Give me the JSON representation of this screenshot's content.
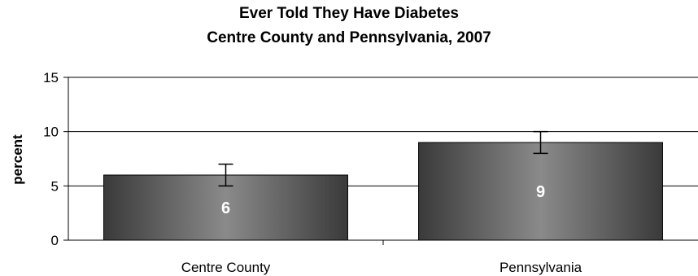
{
  "chart_data": {
    "type": "bar",
    "title": "Ever Told They Have Diabetes",
    "subtitle": "Centre County and Pennsylvania, 2007",
    "xlabel": "",
    "ylabel": "percent",
    "ylim": [
      0,
      15
    ],
    "yticks": [
      0,
      5,
      10,
      15
    ],
    "grid": true,
    "categories": [
      "Centre County",
      "Pennsylvania"
    ],
    "values": [
      6,
      9
    ],
    "data_labels": [
      "6",
      "9"
    ],
    "error_bars": [
      {
        "low": 5,
        "high": 7
      },
      {
        "low": 8,
        "high": 10
      }
    ],
    "colors": {
      "bar_edge": "#3a3a3a",
      "bar_mid": "#8a8a8a",
      "grid": "#000000",
      "label": "#ffffff"
    }
  }
}
